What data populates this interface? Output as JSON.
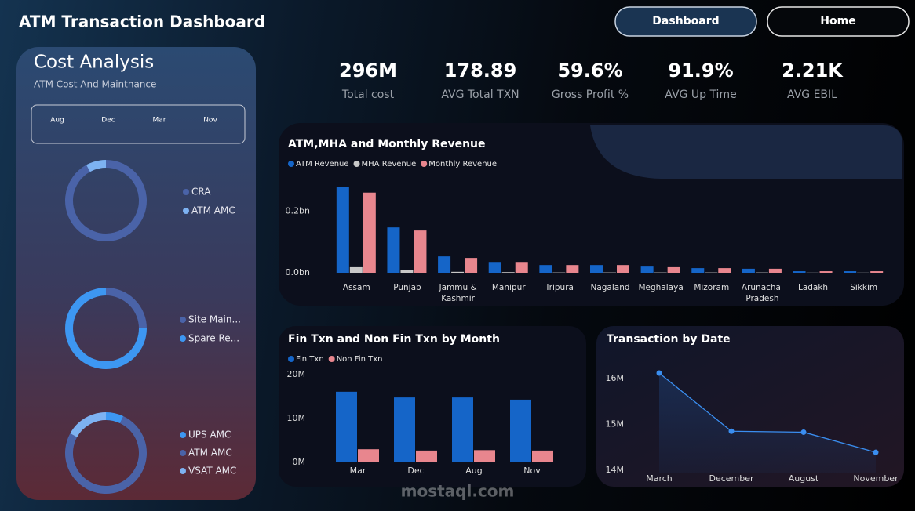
{
  "header": {
    "title": "ATM Transaction Dashboard",
    "nav": [
      "Dashboard",
      "Home"
    ]
  },
  "cost_panel": {
    "title": "Cost Analysis",
    "subtitle": "ATM Cost And Maintnance",
    "months": [
      "Aug",
      "Dec",
      "Mar",
      "Nov"
    ]
  },
  "kpis": [
    {
      "value": "296M",
      "label": "Total cost"
    },
    {
      "value": "178.89",
      "label": "AVG Total TXN"
    },
    {
      "value": "59.6%",
      "label": "Gross Profit %"
    },
    {
      "value": "91.9%",
      "label": "AVG Up Time"
    },
    {
      "value": "2.21K",
      "label": "AVG EBIL"
    }
  ],
  "chart_data": [
    {
      "type": "pie",
      "donut": true,
      "categories": [
        "CRA",
        "ATM AMC"
      ],
      "values": [
        92,
        8
      ],
      "colors": [
        "#4a63a8",
        "#7db2f2"
      ]
    },
    {
      "type": "pie",
      "donut": true,
      "categories": [
        "Site Main...",
        "Spare Re..."
      ],
      "values": [
        25,
        75
      ],
      "colors": [
        "#4a63a8",
        "#3d97f2"
      ]
    },
    {
      "type": "pie",
      "donut": true,
      "categories": [
        "UPS AMC",
        "ATM AMC",
        "VSAT AMC"
      ],
      "values": [
        7,
        76,
        17
      ],
      "colors": [
        "#3d97f2",
        "#4a63a8",
        "#7db2f2"
      ]
    },
    {
      "type": "bar",
      "title": "ATM,MHA and Monthly Revenue",
      "categories": [
        "Assam",
        "Punjab",
        "Jammu & Kashmir",
        "Manipur",
        "Tripura",
        "Nagaland",
        "Meghalaya",
        "Mizoram",
        "Arunachal Pradesh",
        "Ladakh",
        "Sikkim"
      ],
      "series": [
        {
          "name": "ATM Revenue",
          "color": "#1565c8",
          "values": [
            0.278,
            0.147,
            0.053,
            0.035,
            0.025,
            0.025,
            0.02,
            0.015,
            0.013,
            0.005,
            0.005
          ]
        },
        {
          "name": "MHA Revenue",
          "color": "#c8c8c8",
          "values": [
            0.018,
            0.01,
            0.003,
            0.002,
            0.001,
            0.001,
            0.001,
            0.001,
            0.001,
            0.0005,
            0.0005
          ]
        },
        {
          "name": "Monthly Revenue",
          "color": "#e8868e",
          "values": [
            0.26,
            0.137,
            0.048,
            0.035,
            0.025,
            0.025,
            0.018,
            0.015,
            0.013,
            0.005,
            0.005
          ]
        }
      ],
      "ylim": [
        0,
        0.3
      ],
      "yticks": [
        {
          "value": 0,
          "label": "0.0bn"
        },
        {
          "value": 0.2,
          "label": "0.2bn"
        }
      ]
    },
    {
      "type": "bar",
      "title": "Fin Txn and Non Fin Txn by Month",
      "categories": [
        "Mar",
        "Dec",
        "Aug",
        "Nov"
      ],
      "series": [
        {
          "name": "Fin Txn",
          "color": "#1565c8",
          "values": [
            16.1,
            14.8,
            14.8,
            14.3
          ]
        },
        {
          "name": "Non Fin Txn",
          "color": "#e8868e",
          "values": [
            3.0,
            2.7,
            2.8,
            2.7
          ]
        }
      ],
      "ylim": [
        0,
        20
      ],
      "yticks": [
        {
          "value": 0,
          "label": "0M"
        },
        {
          "value": 10,
          "label": "10M"
        },
        {
          "value": 20,
          "label": "20M"
        }
      ]
    },
    {
      "type": "line",
      "title": "Transaction by Date",
      "categories": [
        "March",
        "December",
        "August",
        "November"
      ],
      "values": [
        16.12,
        14.85,
        14.83,
        14.39
      ],
      "color": "#3a8ef0",
      "ylim": [
        14,
        16.2
      ],
      "yticks": [
        {
          "value": 14,
          "label": "14M"
        },
        {
          "value": 15,
          "label": "15M"
        },
        {
          "value": 16,
          "label": "16M"
        }
      ]
    }
  ],
  "watermark": "mostaql.com"
}
